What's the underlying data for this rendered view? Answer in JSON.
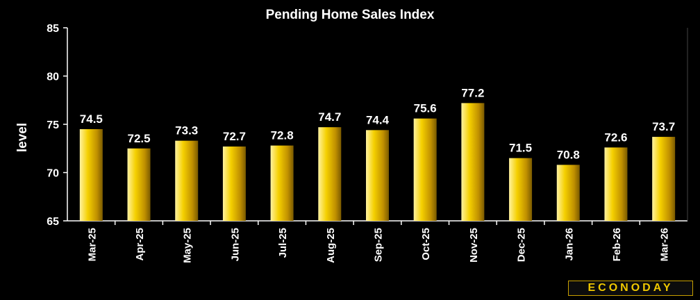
{
  "chart_data": {
    "type": "bar",
    "title": "Pending Home Sales Index",
    "ylabel": "level",
    "xlabel": "",
    "categories": [
      "Mar-25",
      "Apr-25",
      "May-25",
      "Jun-25",
      "Jul-25",
      "Aug-25",
      "Sep-25",
      "Oct-25",
      "Nov-25",
      "Dec-25",
      "Jan-26",
      "Feb-26",
      "Mar-26"
    ],
    "values": [
      74.5,
      72.5,
      73.3,
      72.7,
      72.8,
      74.7,
      74.4,
      75.6,
      77.2,
      71.5,
      70.8,
      72.6,
      73.7
    ],
    "value_labels": [
      "74.5",
      "72.5",
      "73.3",
      "72.7",
      "72.8",
      "74.7",
      "74.4",
      "75.6",
      "77.2",
      "71.5",
      "70.8",
      "72.6",
      "73.7"
    ],
    "ylim": [
      65,
      85
    ],
    "yticks": [
      65,
      70,
      75,
      80,
      85
    ],
    "grid": false,
    "bar_color": "#f0c800",
    "axis_color": "#ffffff",
    "background": "#000000"
  },
  "branding": {
    "logo_text": "ECONODAY"
  }
}
